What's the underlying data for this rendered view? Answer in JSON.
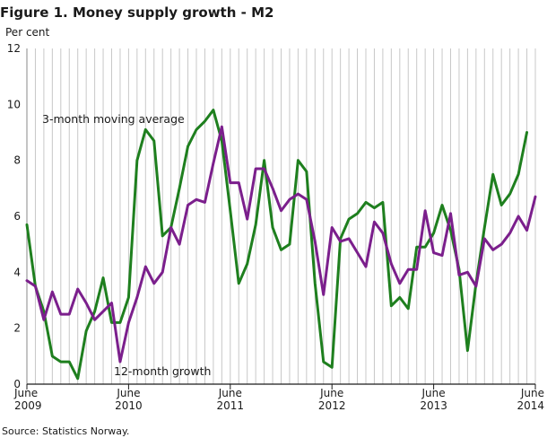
{
  "chart_data": {
    "type": "line",
    "title": "Figure 1. Money supply growth - M2",
    "ylabel": "Per cent",
    "xlabel": "",
    "ylim": [
      0,
      12
    ],
    "yticks": [
      0,
      2,
      4,
      6,
      8,
      10,
      12
    ],
    "x_start": "2009-06",
    "x_end": "2014-06",
    "x_tick_labels": [
      {
        "month": "June",
        "year": "2009"
      },
      {
        "month": "June",
        "year": "2010"
      },
      {
        "month": "June",
        "year": "2011"
      },
      {
        "month": "June",
        "year": "2012"
      },
      {
        "month": "June",
        "year": "2013"
      },
      {
        "month": "June",
        "year": "2014"
      }
    ],
    "grid": "vertical monthly gridlines",
    "source": "Source: Statistics Norway.",
    "series": [
      {
        "name": "12-month growth",
        "color": "#7B1F8C",
        "values": [
          3.7,
          3.5,
          2.3,
          3.3,
          2.5,
          2.5,
          3.4,
          2.9,
          2.3,
          2.6,
          2.9,
          0.8,
          2.2,
          3.1,
          4.2,
          3.6,
          4.0,
          5.6,
          5.0,
          6.4,
          6.6,
          6.5,
          7.9,
          9.2,
          7.2,
          7.2,
          5.9,
          7.7,
          7.7,
          7.0,
          6.2,
          6.6,
          6.8,
          6.6,
          5.1,
          3.2,
          5.6,
          5.1,
          5.2,
          4.7,
          4.2,
          5.8,
          5.4,
          4.3,
          3.6,
          4.1,
          4.1,
          6.2,
          4.7,
          4.6,
          6.1,
          3.9,
          4.0,
          3.5,
          5.2,
          4.8,
          5.0,
          5.4,
          6.0,
          5.5,
          6.7
        ]
      },
      {
        "name": "3-month moving average",
        "color": "#1E7F1E",
        "values": [
          5.7,
          3.5,
          2.6,
          1.0,
          0.8,
          0.8,
          0.2,
          1.9,
          2.6,
          3.8,
          2.2,
          2.2,
          3.1,
          8.0,
          9.1,
          8.7,
          5.3,
          5.6,
          7.0,
          8.5,
          9.1,
          9.4,
          9.8,
          8.7,
          6.2,
          3.6,
          4.3,
          5.7,
          8.0,
          5.6,
          4.8,
          5.0,
          8.0,
          7.6,
          3.6,
          0.8,
          0.6,
          5.2,
          5.9,
          6.1,
          6.5,
          6.3,
          6.5,
          2.8,
          3.1,
          2.7,
          4.9,
          4.9,
          5.4,
          6.4,
          5.5,
          4.1,
          1.2,
          3.6,
          5.6,
          7.5,
          6.4,
          6.8,
          7.5,
          9.0
        ]
      }
    ],
    "annotations": [
      {
        "text": "3-month moving average",
        "series": "3-month moving average"
      },
      {
        "text": "12-month growth",
        "series": "12-month growth"
      }
    ]
  }
}
